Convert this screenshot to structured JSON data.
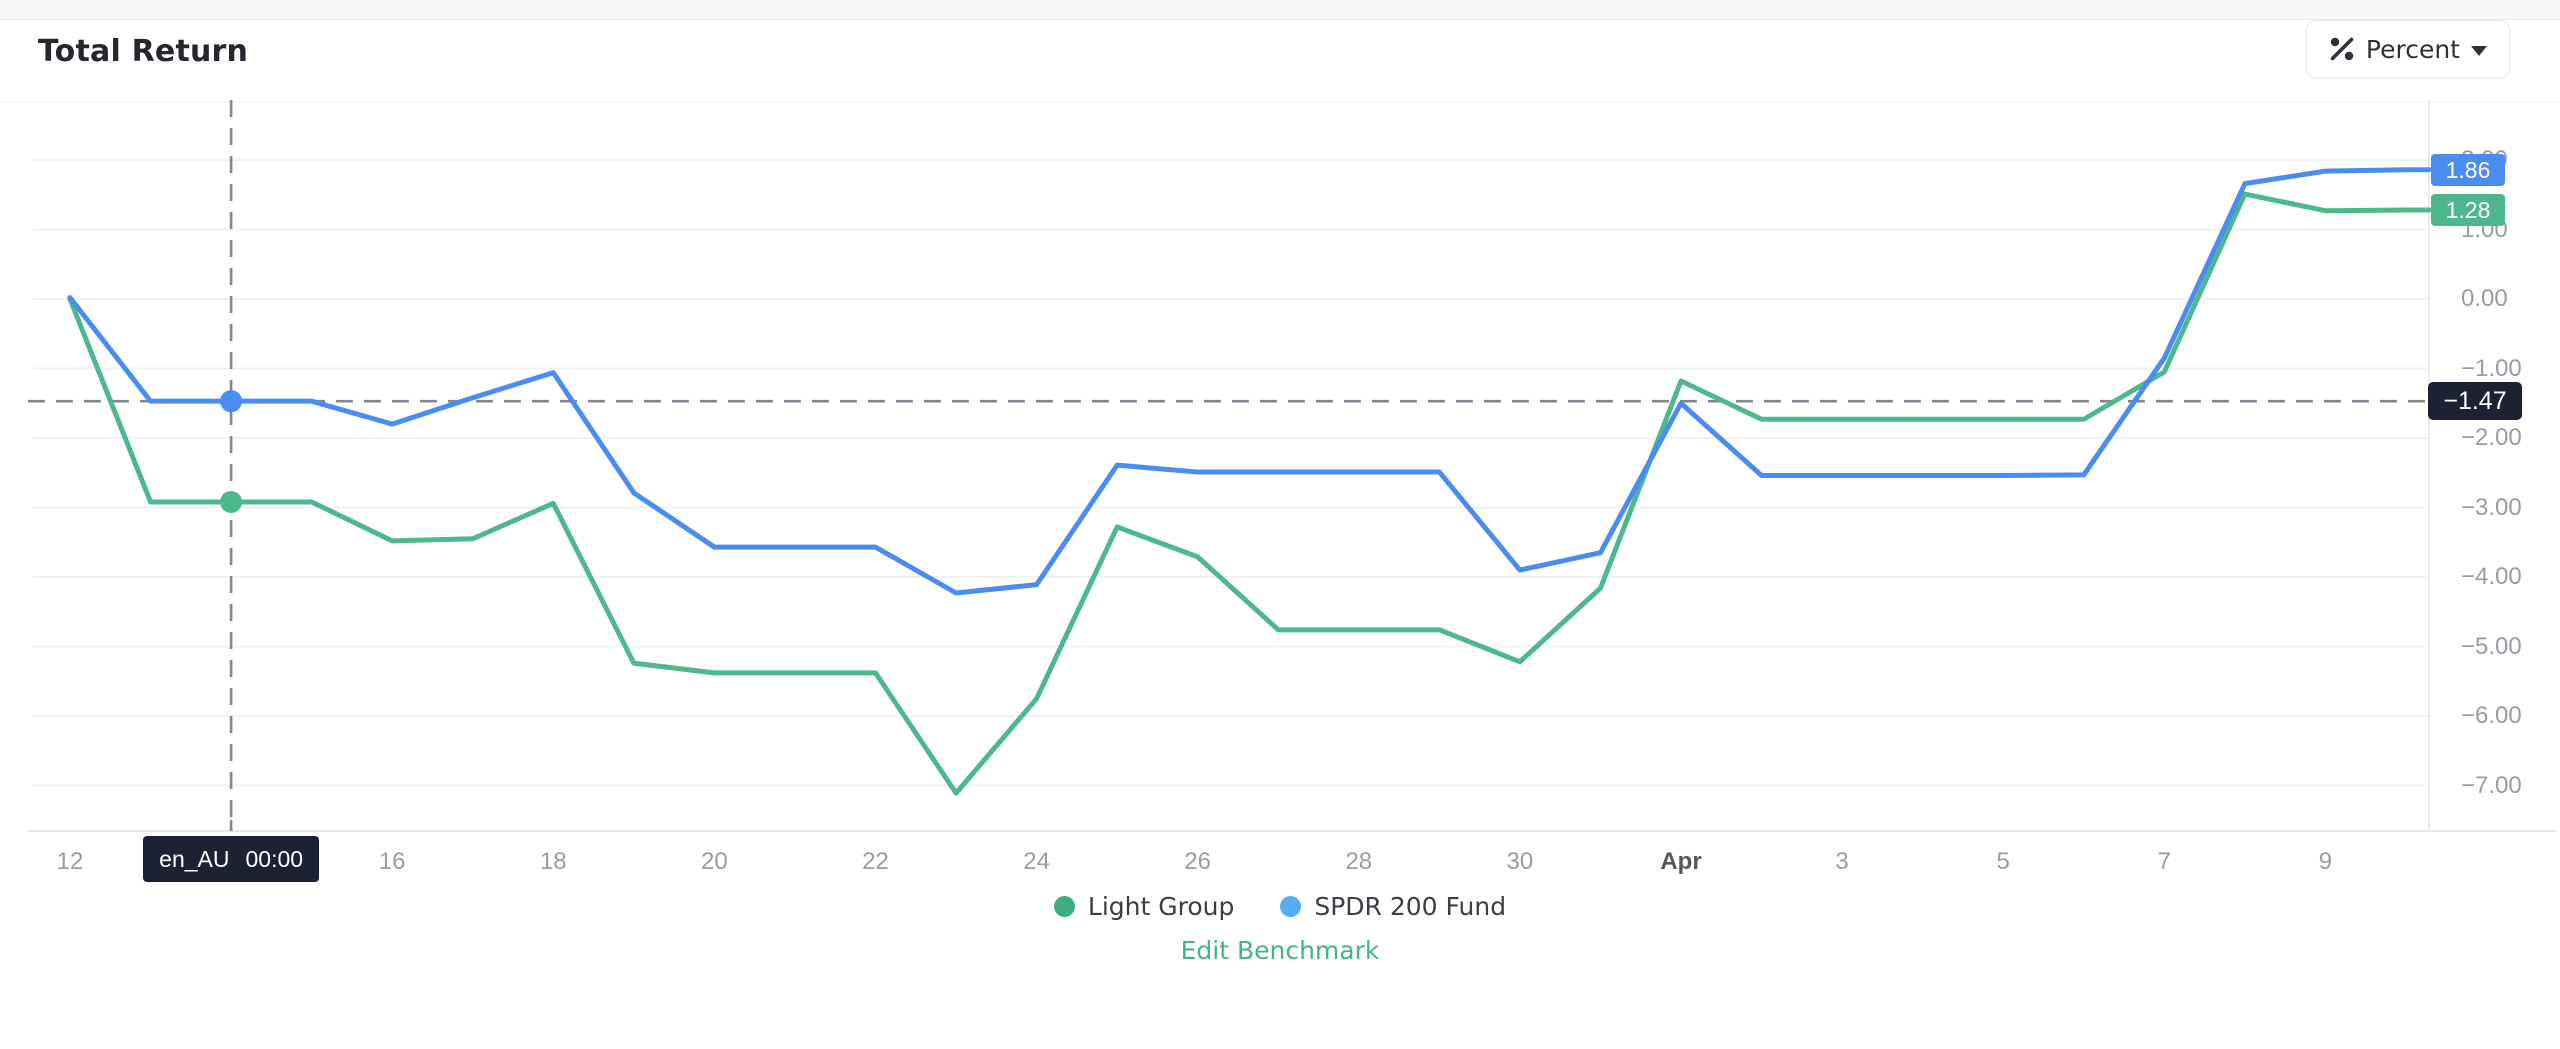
{
  "header": {
    "title": "Total Return",
    "unit_button": {
      "label": "Percent"
    }
  },
  "chart_data": {
    "type": "line",
    "title": "Total Return",
    "unit": "Percent",
    "xlabel": "",
    "ylabel": "",
    "grid": true,
    "legend_position": "bottom",
    "ylim": [
      -7.6,
      2.4
    ],
    "x": [
      "Mar 12",
      "Mar 13",
      "Mar 14",
      "Mar 15",
      "Mar 16",
      "Mar 17",
      "Mar 18",
      "Mar 19",
      "Mar 20",
      "Mar 21",
      "Mar 22",
      "Mar 23",
      "Mar 24",
      "Mar 25",
      "Mar 26",
      "Mar 27",
      "Mar 28",
      "Mar 29",
      "Mar 30",
      "Mar 31",
      "Apr 1",
      "Apr 2",
      "Apr 3",
      "Apr 4",
      "Apr 5",
      "Apr 6",
      "Apr 7",
      "Apr 8",
      "Apr 9",
      "Apr 10"
    ],
    "series": [
      {
        "name": "Light Group",
        "color": "#4db88c",
        "values": [
          0.0,
          -2.92,
          -2.92,
          -2.92,
          -3.48,
          -3.45,
          -2.94,
          -5.24,
          -5.38,
          -5.38,
          -5.38,
          -7.11,
          -5.75,
          -3.28,
          -3.71,
          -4.76,
          -4.76,
          -4.76,
          -5.22,
          -4.16,
          -1.18,
          -1.73,
          -1.73,
          -1.73,
          -1.73,
          -1.73,
          -1.05,
          1.51,
          1.27,
          1.28
        ]
      },
      {
        "name": "SPDR 200 Fund",
        "color": "#4a8cf0",
        "values": [
          0.02,
          -1.47,
          -1.47,
          -1.47,
          -1.8,
          -1.42,
          -1.06,
          -2.79,
          -3.57,
          -3.57,
          -3.57,
          -4.23,
          -4.11,
          -2.39,
          -2.49,
          -2.49,
          -2.49,
          -2.49,
          -3.9,
          -3.65,
          -1.5,
          -2.54,
          -2.54,
          -2.54,
          -2.54,
          -2.53,
          -0.85,
          1.66,
          1.84,
          1.86
        ]
      }
    ],
    "y_ticks": [
      {
        "value": 2,
        "label": "2.00"
      },
      {
        "value": 1,
        "label": "1.00"
      },
      {
        "value": 0,
        "label": "0.00"
      },
      {
        "value": -1,
        "label": "−1.00"
      },
      {
        "value": -2,
        "label": "−2.00"
      },
      {
        "value": -3,
        "label": "−3.00"
      },
      {
        "value": -4,
        "label": "−4.00"
      },
      {
        "value": -5,
        "label": "−5.00"
      },
      {
        "value": -6,
        "label": "−6.00"
      },
      {
        "value": -7,
        "label": "−7.00"
      }
    ],
    "x_ticks": [
      {
        "index": 0,
        "label": "12"
      },
      {
        "index": 4,
        "label": "16"
      },
      {
        "index": 6,
        "label": "18"
      },
      {
        "index": 8,
        "label": "20"
      },
      {
        "index": 10,
        "label": "22"
      },
      {
        "index": 12,
        "label": "24"
      },
      {
        "index": 14,
        "label": "26"
      },
      {
        "index": 16,
        "label": "28"
      },
      {
        "index": 18,
        "label": "30"
      },
      {
        "index": 20,
        "label": "Apr",
        "bold": true
      },
      {
        "index": 22,
        "label": "3"
      },
      {
        "index": 24,
        "label": "5"
      },
      {
        "index": 26,
        "label": "7"
      },
      {
        "index": 28,
        "label": "9"
      }
    ],
    "crosshair": {
      "index": 2,
      "x_tooltip": {
        "locale": "en_AU",
        "time": "00:00"
      },
      "y_value": -1.47,
      "y_label": "−1.47",
      "dot_values": {
        "SPDR 200 Fund": -1.47,
        "Light Group": -2.92
      }
    },
    "end_value_badges": [
      {
        "series": "SPDR 200 Fund",
        "label": "1.86",
        "value": 1.86,
        "color": "#4a8cf0"
      },
      {
        "series": "Light Group",
        "label": "1.28",
        "value": 1.28,
        "color": "#4db88c"
      }
    ]
  },
  "legend": {
    "items": [
      {
        "label": "Light Group",
        "color": "#3fae80"
      },
      {
        "label": "SPDR 200 Fund",
        "color": "#56adf0"
      }
    ],
    "edit_link": "Edit Benchmark"
  },
  "colors": {
    "grid": "#f0f1f4",
    "axis_line": "#e6e8ec",
    "plot_border": "#e9eaee",
    "crosshair": "#848790",
    "tooltip_bg": "#1c2231",
    "tick_text": "#9b9ba3"
  }
}
